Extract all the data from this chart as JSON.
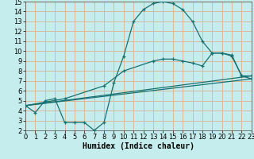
{
  "xlabel": "Humidex (Indice chaleur)",
  "xlim": [
    0,
    23
  ],
  "ylim": [
    2,
    15
  ],
  "xticks": [
    0,
    1,
    2,
    3,
    4,
    5,
    6,
    7,
    8,
    9,
    10,
    11,
    12,
    13,
    14,
    15,
    16,
    17,
    18,
    19,
    20,
    21,
    22,
    23
  ],
  "yticks": [
    2,
    3,
    4,
    5,
    6,
    7,
    8,
    9,
    10,
    11,
    12,
    13,
    14,
    15
  ],
  "bg_color": "#c6eded",
  "grid_color": "#ddb89a",
  "line_color": "#1a7070",
  "line1_x": [
    0,
    1,
    2,
    3,
    4,
    5,
    6,
    7,
    8,
    9,
    10,
    11,
    12,
    13,
    14,
    15,
    16,
    17,
    18,
    19,
    20,
    21,
    22,
    23
  ],
  "line1_y": [
    4.5,
    3.8,
    5.0,
    5.2,
    2.8,
    2.8,
    2.8,
    2.0,
    2.8,
    6.8,
    9.5,
    13.0,
    14.2,
    14.8,
    15.0,
    14.8,
    14.2,
    13.0,
    11.0,
    9.8,
    9.8,
    9.6,
    7.5,
    7.2
  ],
  "line2_x": [
    0,
    23
  ],
  "line2_y": [
    4.5,
    7.5
  ],
  "line3_x": [
    0,
    23
  ],
  "line3_y": [
    4.5,
    7.2
  ],
  "line4_x": [
    0,
    4,
    8,
    10,
    13,
    14,
    15,
    16,
    17,
    18,
    19,
    20,
    21,
    22,
    23
  ],
  "line4_y": [
    4.5,
    5.2,
    6.5,
    8.0,
    9.0,
    9.2,
    9.2,
    9.0,
    8.8,
    8.5,
    9.8,
    9.8,
    9.5,
    7.5,
    7.5
  ],
  "font_size_label": 7,
  "tick_fontsize": 6
}
